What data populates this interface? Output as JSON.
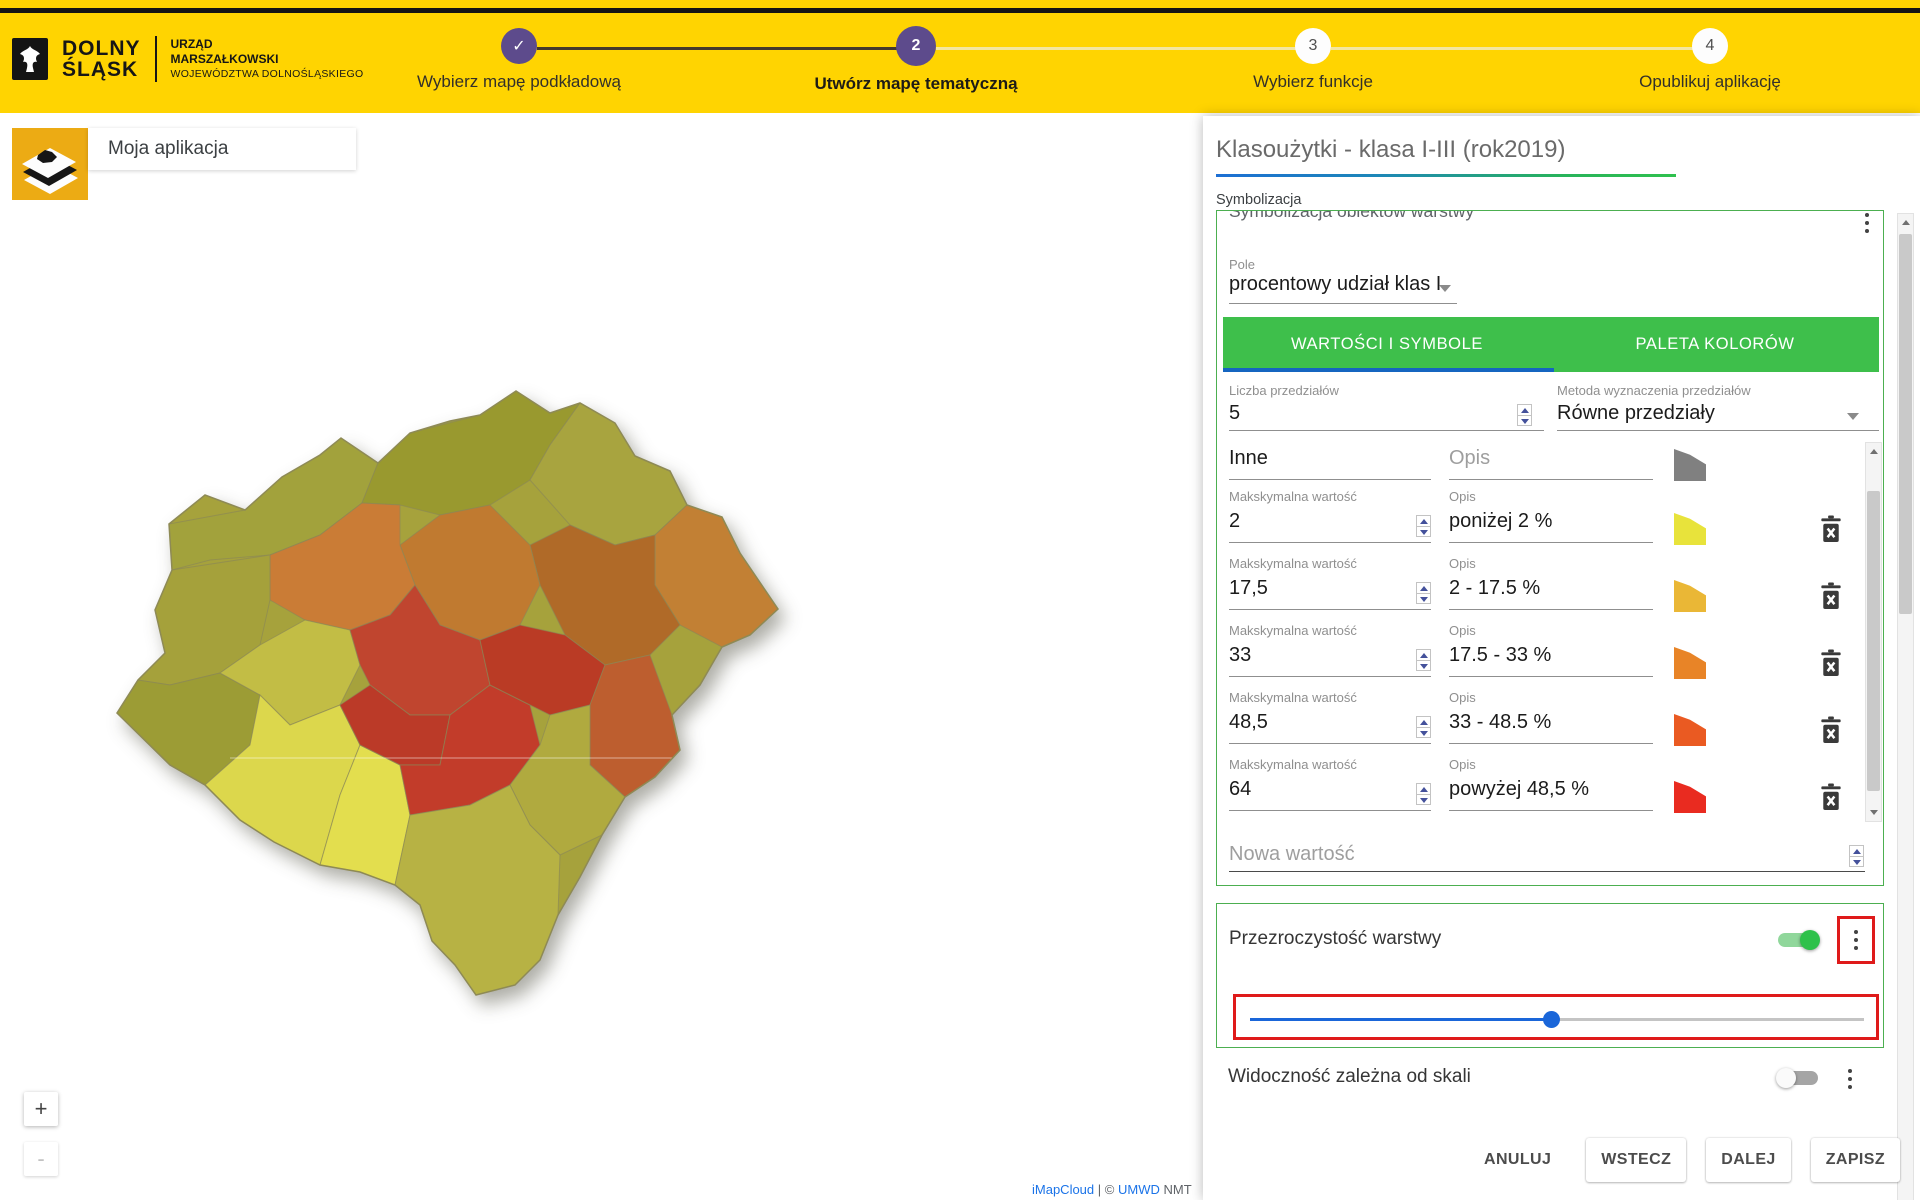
{
  "header": {
    "logo": {
      "region_line1": "DOLNY",
      "region_line2": "ŚLĄSK",
      "org_line1": "URZĄD",
      "org_line2": "MARSZAŁKOWSKI",
      "org_line3": "WOJEWÓDZTWA DOLNOŚLĄSKIEGO"
    },
    "steps": [
      {
        "number": "1",
        "label": "Wybierz mapę podkładową",
        "state": "done"
      },
      {
        "number": "2",
        "label": "Utwórz mapę tematyczną",
        "state": "active"
      },
      {
        "number": "3",
        "label": "Wybierz funkcje",
        "state": "upcoming"
      },
      {
        "number": "4",
        "label": "Opublikuj aplikację",
        "state": "upcoming"
      }
    ]
  },
  "map_toolbar": {
    "app_name": "Moja aplikacja"
  },
  "map_controls": {
    "zoom_in": "+",
    "zoom_out": "-"
  },
  "panel": {
    "title": "Klasoużytki - klasa I-III (rok2019)",
    "section_label": "Symbolizacja",
    "box_header": "Symbolizacja obiektów warstwy",
    "pole_label": "Pole",
    "pole_value": "procentowy udział klas I",
    "tabs": [
      {
        "label": "WARTOŚCI I SYMBOLE",
        "active": true
      },
      {
        "label": "PALETA KOLORÓW",
        "active": false
      }
    ],
    "liczba_label": "Liczba przedziałów",
    "liczba_value": "5",
    "metoda_label": "Metoda wyznaczenia przedziałów",
    "metoda_value": "Równe przedziały",
    "rows": [
      {
        "value_label": "",
        "value": "Inne",
        "opis_label": "Opis",
        "opis": "",
        "color": "#808080",
        "deletable": false
      },
      {
        "value_label": "Makskymalna wartość",
        "value": "2",
        "opis_label": "Opis",
        "opis": "poniżej 2 %",
        "color": "#e8e33b",
        "deletable": true
      },
      {
        "value_label": "Makskymalna wartość",
        "value": "17,5",
        "opis_label": "Opis",
        "opis": "2 - 17.5 %",
        "color": "#eab736",
        "deletable": true
      },
      {
        "value_label": "Makskymalna wartość",
        "value": "33",
        "opis_label": "Opis",
        "opis": "17.5 - 33 %",
        "color": "#e88427",
        "deletable": true
      },
      {
        "value_label": "Makskymalna wartość",
        "value": "48,5",
        "opis_label": "Opis",
        "opis": "33 - 48.5 %",
        "color": "#ea5a22",
        "deletable": true
      },
      {
        "value_label": "Makskymalna wartość",
        "value": "64",
        "opis_label": "Opis",
        "opis": "powyżej 48,5 %",
        "color": "#e92b20",
        "deletable": true
      }
    ],
    "nowa_wartosc_placeholder": "Nowa wartość",
    "transparency": {
      "label": "Przezroczystość warstwy",
      "enabled": true,
      "slider_percent": 49
    },
    "visibility": {
      "label": "Widoczność zależna od skali",
      "enabled": false
    },
    "buttons": {
      "cancel": "ANULUJ",
      "back": "WSTECZ",
      "next": "DALEJ",
      "save": "ZAPISZ"
    }
  },
  "footer": {
    "brand": "iMapCloud",
    "separator": "|",
    "copyright": "©",
    "org_link": "UMWD",
    "suffix": "NMT"
  },
  "colors": {
    "header_yellow": "#ffd401",
    "step_purple": "#5d4b8c",
    "tab_green": "#3ebf4b",
    "box_border_green": "#4caf50",
    "ink_bar_blue": "#1565c0",
    "slider_blue": "#1a66d9",
    "toggle_on_green": "#2ec14a",
    "annotation_red": "#df1a1a",
    "link_blue": "#1a73e8"
  }
}
